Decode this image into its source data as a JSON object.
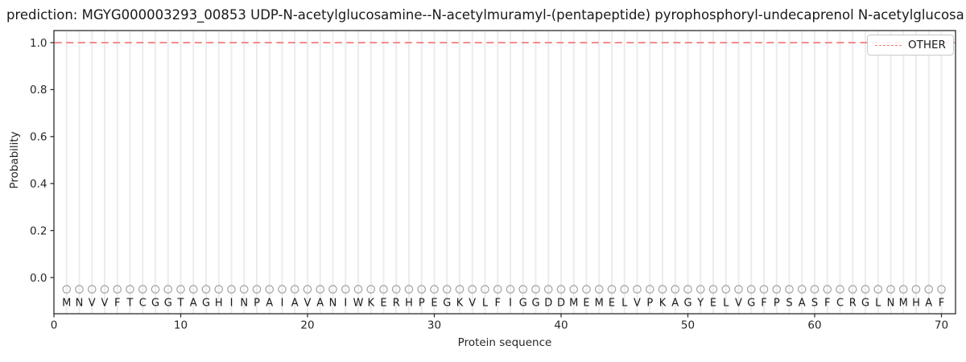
{
  "figure": {
    "background": "#ffffff"
  },
  "chart_data": {
    "type": "line",
    "title": "prediction: MGYG000003293_00853 UDP-N-acetylglucosamine--N-acetylmuramyl-(pentapeptide) pyrophosphoryl-undecaprenol N-acetylglucosa",
    "xlabel": "Protein sequence",
    "ylabel": "Probability",
    "xlim": [
      0,
      71.1
    ],
    "ylim": [
      -0.154,
      1.051
    ],
    "xticks": [
      0,
      10,
      20,
      30,
      40,
      50,
      60,
      70
    ],
    "yticks": [
      0.0,
      0.2,
      0.4,
      0.6,
      0.8,
      1.0
    ],
    "grid": {
      "vertical_per_residue": true,
      "color": "#ececec"
    },
    "series": [
      {
        "name": "OTHER",
        "kind": "hline",
        "y": 1.0,
        "color": "#f47c7c",
        "linestyle": "dashed"
      }
    ],
    "sequence": {
      "residues": "MNVVFTCGGTAGHINPAIAVANIWKERHPEGKVLFIGGDDMEMELVPKAGYELVGFPSASFCRGLNMHAF",
      "start_position": 1,
      "marker": "open-circle",
      "marker_y": -0.05,
      "label_y": -0.105,
      "marker_color": "#a3a3a3",
      "label_color": "#1a1a1a"
    },
    "legend": {
      "loc": "upper right",
      "entries": [
        {
          "label": "OTHER",
          "color": "#f47c7c",
          "linestyle": "dashed"
        }
      ]
    },
    "axis_color": "#2b2b2b",
    "tick_label_color": "#262626"
  }
}
